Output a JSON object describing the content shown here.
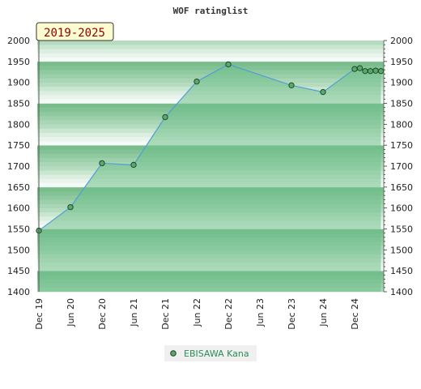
{
  "chart_data": {
    "type": "area",
    "title": "WOF ratinglist",
    "period_label": "2019-2025",
    "xlabel": "",
    "ylabel": "",
    "ylim": [
      1400,
      2000
    ],
    "y_ticks": [
      1400,
      1450,
      1500,
      1550,
      1600,
      1650,
      1700,
      1750,
      1800,
      1850,
      1900,
      1950,
      2000
    ],
    "x_tick_labels": [
      "Dec 19",
      "Jun 20",
      "Dec 20",
      "Jun 21",
      "Dec 21",
      "Jun 22",
      "Dec 22",
      "Jun 23",
      "Dec 23",
      "Jun 24",
      "Dec 24"
    ],
    "grid": true,
    "legend_position": "bottom-center",
    "series": [
      {
        "name": "EBISAWA Kana",
        "color": "#4f9ed8",
        "marker_color": "#5aa86a",
        "fill_color": "#6fbf8a",
        "points": [
          {
            "t": 0,
            "y": 1546
          },
          {
            "t": 6,
            "y": 1602
          },
          {
            "t": 12,
            "y": 1707
          },
          {
            "t": 18,
            "y": 1703
          },
          {
            "t": 24,
            "y": 1817
          },
          {
            "t": 30,
            "y": 1902
          },
          {
            "t": 36,
            "y": 1943
          },
          {
            "t": 48,
            "y": 1893
          },
          {
            "t": 54,
            "y": 1877
          },
          {
            "t": 60,
            "y": 1932
          },
          {
            "t": 61,
            "y": 1934
          },
          {
            "t": 62,
            "y": 1927
          },
          {
            "t": 63,
            "y": 1927
          },
          {
            "t": 64,
            "y": 1928
          },
          {
            "t": 65,
            "y": 1927
          }
        ]
      }
    ]
  }
}
